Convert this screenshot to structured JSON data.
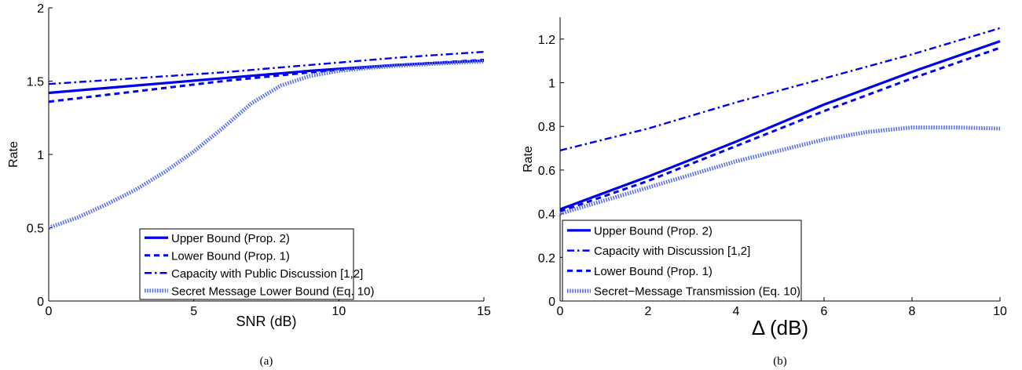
{
  "chart_data": [
    {
      "type": "line",
      "caption": "(a)",
      "xlabel": "SNR (dB)",
      "ylabel": "Rate",
      "xlim": [
        0,
        15
      ],
      "ylim": [
        0,
        2
      ],
      "xticks": [
        0,
        5,
        10,
        15
      ],
      "yticks": [
        0,
        0.5,
        1,
        1.5,
        2
      ],
      "grid": false,
      "legend_position": "bottom-right",
      "series": [
        {
          "name": "Upper Bound (Prop. 2)",
          "style": "solid",
          "color": "#0000ee",
          "x": [
            0,
            3,
            6,
            9,
            12,
            15
          ],
          "y": [
            1.42,
            1.47,
            1.52,
            1.57,
            1.61,
            1.64
          ]
        },
        {
          "name": "Lower Bound (Prop. 1)",
          "style": "dashed",
          "color": "#0000ee",
          "x": [
            0,
            3,
            6,
            9,
            12,
            15
          ],
          "y": [
            1.36,
            1.43,
            1.5,
            1.56,
            1.61,
            1.645
          ]
        },
        {
          "name": "Capacity with Public Discussion [1,2]",
          "style": "dashdot",
          "color": "#0000ee",
          "x": [
            0,
            3,
            6,
            9,
            12,
            15
          ],
          "y": [
            1.48,
            1.52,
            1.56,
            1.61,
            1.66,
            1.7
          ]
        },
        {
          "name": "Secret Message Lower Bound (Eq. 10)",
          "style": "dotted",
          "color": "#5a6ff0",
          "x": [
            0,
            1,
            2,
            3,
            4,
            5,
            6,
            7,
            8,
            9,
            10,
            11,
            12,
            13,
            14,
            15
          ],
          "y": [
            0.5,
            0.57,
            0.66,
            0.76,
            0.88,
            1.02,
            1.18,
            1.35,
            1.47,
            1.535,
            1.57,
            1.59,
            1.605,
            1.615,
            1.625,
            1.635
          ]
        }
      ]
    },
    {
      "type": "line",
      "caption": "(b)",
      "xlabel": "Δ (dB)",
      "ylabel": "Rate",
      "xlim": [
        0,
        10
      ],
      "ylim": [
        0,
        1.3
      ],
      "xticks": [
        0,
        2,
        4,
        6,
        8,
        10
      ],
      "yticks": [
        0,
        0.2,
        0.4,
        0.6,
        0.8,
        1,
        1.2
      ],
      "grid": false,
      "legend_position": "bottom-left",
      "series": [
        {
          "name": "Upper Bound (Prop. 2)",
          "style": "solid",
          "color": "#0000ee",
          "x": [
            0,
            2,
            4,
            6,
            8,
            10
          ],
          "y": [
            0.42,
            0.57,
            0.73,
            0.9,
            1.05,
            1.19
          ]
        },
        {
          "name": "Capacity with Discussion [1,2]",
          "style": "dashdot",
          "color": "#0000ee",
          "x": [
            0,
            2,
            4,
            6,
            8,
            10
          ],
          "y": [
            0.69,
            0.79,
            0.91,
            1.02,
            1.13,
            1.25
          ]
        },
        {
          "name": "Lower Bound (Prop. 1)",
          "style": "dashed",
          "color": "#0000ee",
          "x": [
            0,
            2,
            4,
            6,
            8,
            10
          ],
          "y": [
            0.41,
            0.55,
            0.71,
            0.87,
            1.02,
            1.16
          ]
        },
        {
          "name": "Secret−Message Transmission (Eq. 10)",
          "style": "dotted",
          "color": "#5a6ff0",
          "x": [
            0,
            1,
            2,
            3,
            4,
            5,
            6,
            7,
            8,
            9,
            10
          ],
          "y": [
            0.4,
            0.46,
            0.52,
            0.58,
            0.64,
            0.69,
            0.74,
            0.775,
            0.795,
            0.795,
            0.79
          ]
        }
      ]
    }
  ]
}
